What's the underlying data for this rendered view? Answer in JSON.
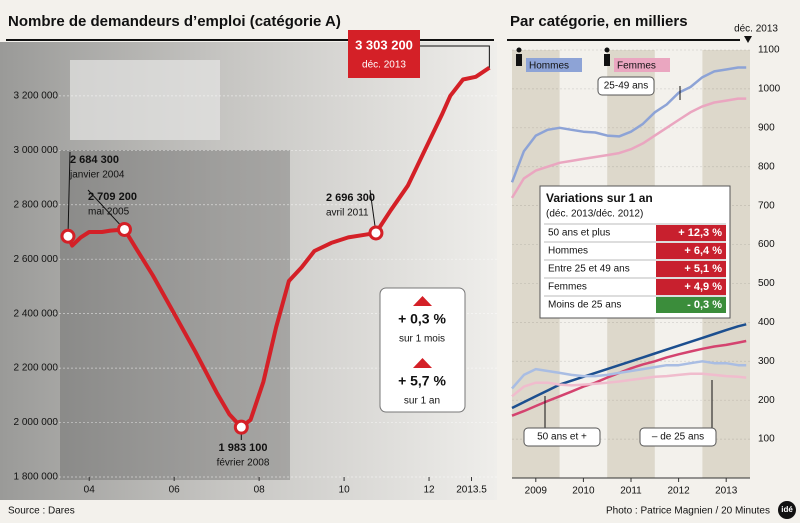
{
  "chart_data": [
    {
      "type": "line",
      "title": "Nombre de demandeurs d’emploi (catégorie A)",
      "source": "Source : Dares",
      "x": [
        2004.0,
        2004.1,
        2004.3,
        2004.5,
        2004.8,
        2005.0,
        2005.33,
        2005.6,
        2006.0,
        2006.5,
        2007.0,
        2007.5,
        2007.8,
        2008.08,
        2008.3,
        2008.6,
        2008.9,
        2009.2,
        2009.5,
        2009.8,
        2010.2,
        2010.6,
        2011.0,
        2011.25,
        2011.6,
        2012.0,
        2012.4,
        2012.8,
        2013.0,
        2013.3,
        2013.6,
        2013.92
      ],
      "series": [
        {
          "color": "#d42027",
          "values": [
            2684300,
            2650000,
            2680000,
            2700000,
            2700000,
            2705000,
            2709200,
            2640000,
            2540000,
            2400000,
            2260000,
            2110000,
            2030000,
            1983100,
            2010000,
            2150000,
            2350000,
            2520000,
            2570000,
            2630000,
            2660000,
            2680000,
            2690000,
            2696300,
            2780000,
            2870000,
            3000000,
            3130000,
            3200000,
            3260000,
            3270000,
            3303200
          ]
        }
      ],
      "xlim": [
        2003.6,
        2014.1
      ],
      "xticks": [
        {
          "value": 2004.5,
          "label": "04"
        },
        {
          "value": 2006.5,
          "label": "06"
        },
        {
          "value": 2008.5,
          "label": "08"
        },
        {
          "value": 2010.5,
          "label": "10"
        },
        {
          "value": 2012.5,
          "label": "12"
        },
        2013.5
      ],
      "ylim": [
        1800000,
        3350000
      ],
      "yticks": [
        {
          "value": 1800000,
          "label": "1 800 000"
        },
        {
          "value": 2000000,
          "label": "2 000 000"
        },
        {
          "value": 2200000,
          "label": "2 200 000"
        },
        {
          "value": 2400000,
          "label": "2 400 000"
        },
        {
          "value": 2600000,
          "label": "2 600 000"
        },
        {
          "value": 2800000,
          "label": "2 800 000"
        },
        {
          "value": 3000000,
          "label": "3 000 000"
        },
        {
          "value": 3200000,
          "label": "3 200 000"
        }
      ],
      "annotations": [
        {
          "text": "2 684 300",
          "date": "janvier 2004"
        },
        {
          "text": "2 709 200",
          "date": "mai 2005"
        },
        {
          "text": "1 983 100",
          "date": "février 2008"
        },
        {
          "text": "2 696 300",
          "date": "avril 2011"
        },
        {
          "text": "3 303 200",
          "date": "déc. 2013"
        }
      ],
      "changes": [
        {
          "text": "+ 0,3 %",
          "period": "sur 1 mois"
        },
        {
          "text": "+ 5,7 %",
          "period": "sur 1 an"
        }
      ]
    },
    {
      "type": "line",
      "title": "Par catégorie, en milliers",
      "date_label": "déc. 2013",
      "credit": "Photo : Patrice Magnien / 20 Minutes",
      "x": [
        2009.0,
        2009.25,
        2009.5,
        2009.75,
        2010.0,
        2010.25,
        2010.5,
        2010.75,
        2011.0,
        2011.25,
        2011.5,
        2011.75,
        2012.0,
        2012.25,
        2012.5,
        2012.75,
        2013.0,
        2013.25,
        2013.5,
        2013.75,
        2013.92
      ],
      "xlim": [
        2009,
        2014
      ],
      "xticks": [
        {
          "value": 2009.5,
          "label": "2009"
        },
        {
          "value": 2010.5,
          "label": "2010"
        },
        {
          "value": 2011.5,
          "label": "2011"
        },
        {
          "value": 2012.5,
          "label": "2012"
        },
        {
          "value": 2013.5,
          "label": "2013"
        }
      ],
      "ylim": [
        0,
        1100
      ],
      "yticks": [
        100,
        200,
        300,
        400,
        500,
        600,
        700,
        800,
        900,
        1000,
        1100
      ],
      "series": [
        {
          "name": "Hommes",
          "group": "25-49 ans",
          "color": "#8da3d6",
          "values": [
            760,
            840,
            880,
            895,
            900,
            895,
            890,
            888,
            880,
            878,
            890,
            910,
            940,
            960,
            990,
            1005,
            1030,
            1045,
            1050,
            1055,
            1055
          ]
        },
        {
          "name": "Femmes",
          "group": "25-49 ans",
          "color": "#eaa6c0",
          "values": [
            720,
            770,
            790,
            800,
            810,
            815,
            820,
            825,
            830,
            835,
            845,
            860,
            880,
            900,
            920,
            940,
            955,
            965,
            970,
            975,
            975
          ]
        },
        {
          "name": "Hommes",
          "group": "50 ans et +",
          "color": "#1c4f8f",
          "values": [
            180,
            195,
            210,
            225,
            240,
            250,
            260,
            270,
            280,
            290,
            300,
            310,
            320,
            330,
            340,
            350,
            360,
            370,
            380,
            390,
            395
          ]
        },
        {
          "name": "Femmes",
          "group": "50 ans et +",
          "color": "#d4436f",
          "values": [
            160,
            172,
            185,
            198,
            210,
            222,
            235,
            245,
            258,
            270,
            282,
            292,
            300,
            310,
            318,
            325,
            332,
            338,
            342,
            348,
            352
          ]
        },
        {
          "name": "Hommes",
          "group": "– de 25 ans",
          "color": "#a9bde3",
          "values": [
            230,
            265,
            280,
            275,
            270,
            265,
            262,
            262,
            265,
            270,
            275,
            280,
            285,
            290,
            290,
            295,
            300,
            295,
            295,
            290,
            290
          ]
        },
        {
          "name": "Femmes",
          "group": "– de 25 ans",
          "color": "#f0bccd",
          "values": [
            210,
            235,
            245,
            245,
            240,
            238,
            240,
            242,
            245,
            248,
            252,
            256,
            260,
            262,
            265,
            268,
            268,
            265,
            262,
            260,
            258
          ]
        }
      ],
      "table": {
        "title": "Variations sur 1 an",
        "subtitle": "(déc. 2013/déc. 2012)",
        "rows": [
          {
            "label": "50 ans et plus",
            "value": "+ 12,3 %",
            "color": "#c8202e"
          },
          {
            "label": "Hommes",
            "value": "+ 6,4 %",
            "color": "#c8202e"
          },
          {
            "label": "Entre 25 et 49 ans",
            "value": "+ 5,1 %",
            "color": "#c8202e"
          },
          {
            "label": "Femmes",
            "value": "+ 4,9 %",
            "color": "#c8202e"
          },
          {
            "label": "Moins de 25 ans",
            "value": "- 0,3 %",
            "color": "#3b8d3b"
          }
        ]
      }
    }
  ],
  "logo": "idé"
}
